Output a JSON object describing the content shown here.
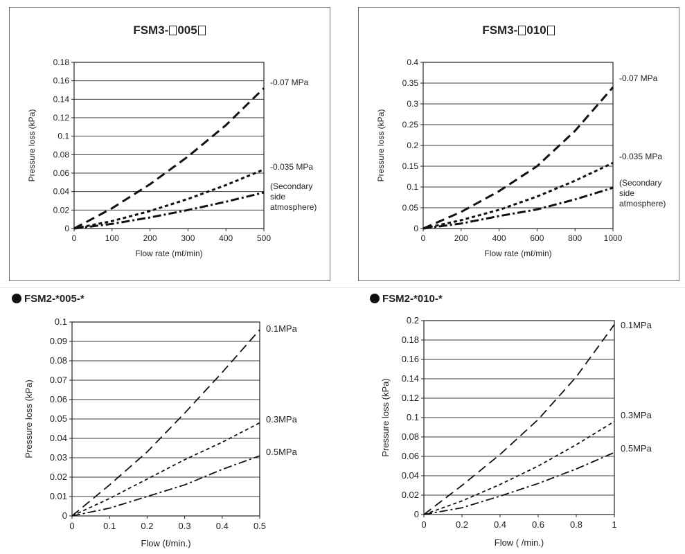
{
  "panels": [
    {
      "title_pre": "FSM3-",
      "title_mid": "005",
      "section": "",
      "chart_data": {
        "type": "line",
        "xlabel": "Flow rate (mℓ/min)",
        "ylabel": "Pressure loss (kPa)",
        "xlim": [
          0,
          500
        ],
        "ylim": [
          0,
          0.18
        ],
        "xticks": [
          "0",
          "100",
          "200",
          "300",
          "400",
          "500"
        ],
        "yticks": [
          "0",
          "0.02",
          "0.04",
          "0.06",
          "0.08",
          "0.1",
          "0.12",
          "0.14",
          "0.16",
          "0.18"
        ],
        "grid": "horizontal",
        "series": [
          {
            "name": "-0.07 MPa",
            "dash": "long",
            "x": [
              0,
              100,
              200,
              300,
              400,
              500
            ],
            "y": [
              0,
              0.022,
              0.048,
              0.078,
              0.112,
              0.152
            ]
          },
          {
            "name": "-0.035 MPa",
            "dash": "short",
            "x": [
              0,
              100,
              200,
              300,
              400,
              500
            ],
            "y": [
              0,
              0.008,
              0.019,
              0.032,
              0.047,
              0.064
            ]
          },
          {
            "name": "(Secondary\nside\natmosphere)",
            "dash": "dashdot",
            "x": [
              0,
              100,
              200,
              300,
              400,
              500
            ],
            "y": [
              0,
              0.005,
              0.012,
              0.02,
              0.029,
              0.039
            ]
          }
        ]
      }
    },
    {
      "title_pre": "FSM3-",
      "title_mid": "010",
      "section": "",
      "chart_data": {
        "type": "line",
        "xlabel": "Flow rate (mℓ/min)",
        "ylabel": "Pressure loss (kPa)",
        "xlim": [
          0,
          1000
        ],
        "ylim": [
          0,
          0.4
        ],
        "xticks": [
          "0",
          "200",
          "400",
          "600",
          "800",
          "1000"
        ],
        "yticks": [
          "0",
          "0.05",
          "0.1",
          "0.15",
          "0.2",
          "0.25",
          "0.3",
          "0.35",
          "0.4"
        ],
        "grid": "horizontal",
        "series": [
          {
            "name": "-0.07 MPa",
            "dash": "long",
            "x": [
              0,
              200,
              400,
              600,
              800,
              1000
            ],
            "y": [
              0,
              0.04,
              0.09,
              0.15,
              0.235,
              0.34
            ]
          },
          {
            "name": "-0.035 MPa",
            "dash": "short",
            "x": [
              0,
              200,
              400,
              600,
              800,
              1000
            ],
            "y": [
              0,
              0.02,
              0.045,
              0.077,
              0.115,
              0.158
            ]
          },
          {
            "name": "(Secondary\nside\natmosphere)",
            "dash": "dashdot",
            "x": [
              0,
              200,
              400,
              600,
              800,
              1000
            ],
            "y": [
              0,
              0.012,
              0.03,
              0.046,
              0.07,
              0.098
            ]
          }
        ]
      }
    },
    {
      "title_pre": "",
      "title_mid": "",
      "section": "FSM2-*005-*",
      "chart_data": {
        "type": "line",
        "xlabel": "Flow (ℓ/min.)",
        "ylabel": "Pressure loss (kPa)",
        "xlim": [
          0,
          0.5
        ],
        "ylim": [
          0,
          0.1
        ],
        "xticks": [
          "0",
          "0.1",
          "0.2",
          "0.3",
          "0.4",
          "0.5"
        ],
        "yticks": [
          "0",
          "0.01",
          "0.02",
          "0.03",
          "0.04",
          "0.05",
          "0.06",
          "0.07",
          "0.08",
          "0.09",
          "0.1"
        ],
        "grid": "horizontal",
        "series": [
          {
            "name": "0.1MPa",
            "dash": "long",
            "x": [
              0,
              0.1,
              0.2,
              0.3,
              0.4,
              0.5
            ],
            "y": [
              0,
              0.016,
              0.033,
              0.053,
              0.074,
              0.096
            ]
          },
          {
            "name": "0.3MPa",
            "dash": "short",
            "x": [
              0,
              0.1,
              0.2,
              0.3,
              0.4,
              0.5
            ],
            "y": [
              0,
              0.009,
              0.019,
              0.029,
              0.038,
              0.048
            ]
          },
          {
            "name": "0.5MPa",
            "dash": "dashdot",
            "x": [
              0,
              0.1,
              0.2,
              0.3,
              0.4,
              0.5
            ],
            "y": [
              0,
              0.004,
              0.01,
              0.016,
              0.024,
              0.031
            ]
          }
        ]
      }
    },
    {
      "title_pre": "",
      "title_mid": "",
      "section": "FSM2-*010-*",
      "chart_data": {
        "type": "line",
        "xlabel": "Flow (  /min.)",
        "ylabel": "Pressure loss (kPa)",
        "xlim": [
          0,
          1
        ],
        "ylim": [
          0,
          0.2
        ],
        "xticks": [
          "0",
          "0.2",
          "0.4",
          "0.6",
          "0.8",
          "1"
        ],
        "yticks": [
          "0",
          "0.02",
          "0.04",
          "0.06",
          "0.08",
          "0.1",
          "0.12",
          "0.14",
          "0.16",
          "0.18",
          "0.2"
        ],
        "grid": "horizontal",
        "series": [
          {
            "name": "0.1MPa",
            "dash": "long",
            "x": [
              0,
              0.2,
              0.4,
              0.6,
              0.8,
              1
            ],
            "y": [
              0,
              0.03,
              0.062,
              0.098,
              0.142,
              0.196
            ]
          },
          {
            "name": "0.3MPa",
            "dash": "short",
            "x": [
              0,
              0.2,
              0.4,
              0.6,
              0.8,
              1
            ],
            "y": [
              0,
              0.014,
              0.031,
              0.05,
              0.072,
              0.096
            ]
          },
          {
            "name": "0.5MPa",
            "dash": "dashdot",
            "x": [
              0,
              0.2,
              0.4,
              0.6,
              0.8,
              1
            ],
            "y": [
              0,
              0.007,
              0.019,
              0.032,
              0.047,
              0.064
            ]
          }
        ]
      }
    }
  ]
}
